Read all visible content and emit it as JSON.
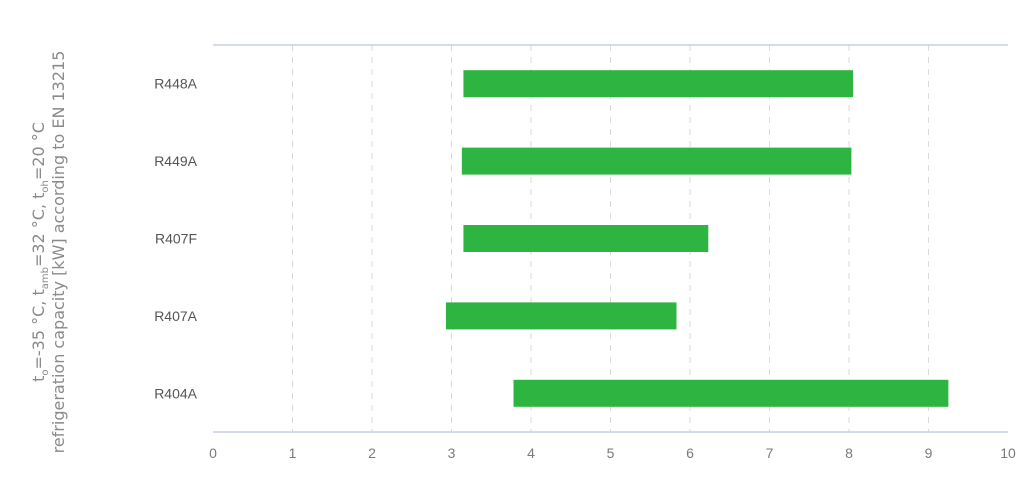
{
  "chart_data": {
    "type": "bar",
    "orientation": "horizontal",
    "floating": true,
    "categories": [
      "R448A",
      "R449A",
      "R407F",
      "R407A",
      "R404A"
    ],
    "series": [
      {
        "ranges": [
          [
            3.15,
            8.05
          ],
          [
            3.13,
            8.03
          ],
          [
            3.15,
            6.23
          ],
          [
            2.93,
            5.83
          ],
          [
            3.78,
            9.25
          ]
        ]
      }
    ],
    "xlim": [
      0,
      10
    ],
    "xticks": [
      "0",
      "1",
      "2",
      "3",
      "4",
      "5",
      "6",
      "7",
      "8",
      "9",
      "10"
    ],
    "ylabel_line1": {
      "p1": "t",
      "s1": "o",
      "p2": "=-35 °C, t",
      "s2": "amb",
      "p3": "=32 °C, t",
      "s3": "oh",
      "p4": "=20 °C"
    },
    "ylabel_line2": "refrigeration capacity [kW] according to EN 13215",
    "grid": true,
    "legend": "none",
    "bar_color": "#2eb441"
  }
}
